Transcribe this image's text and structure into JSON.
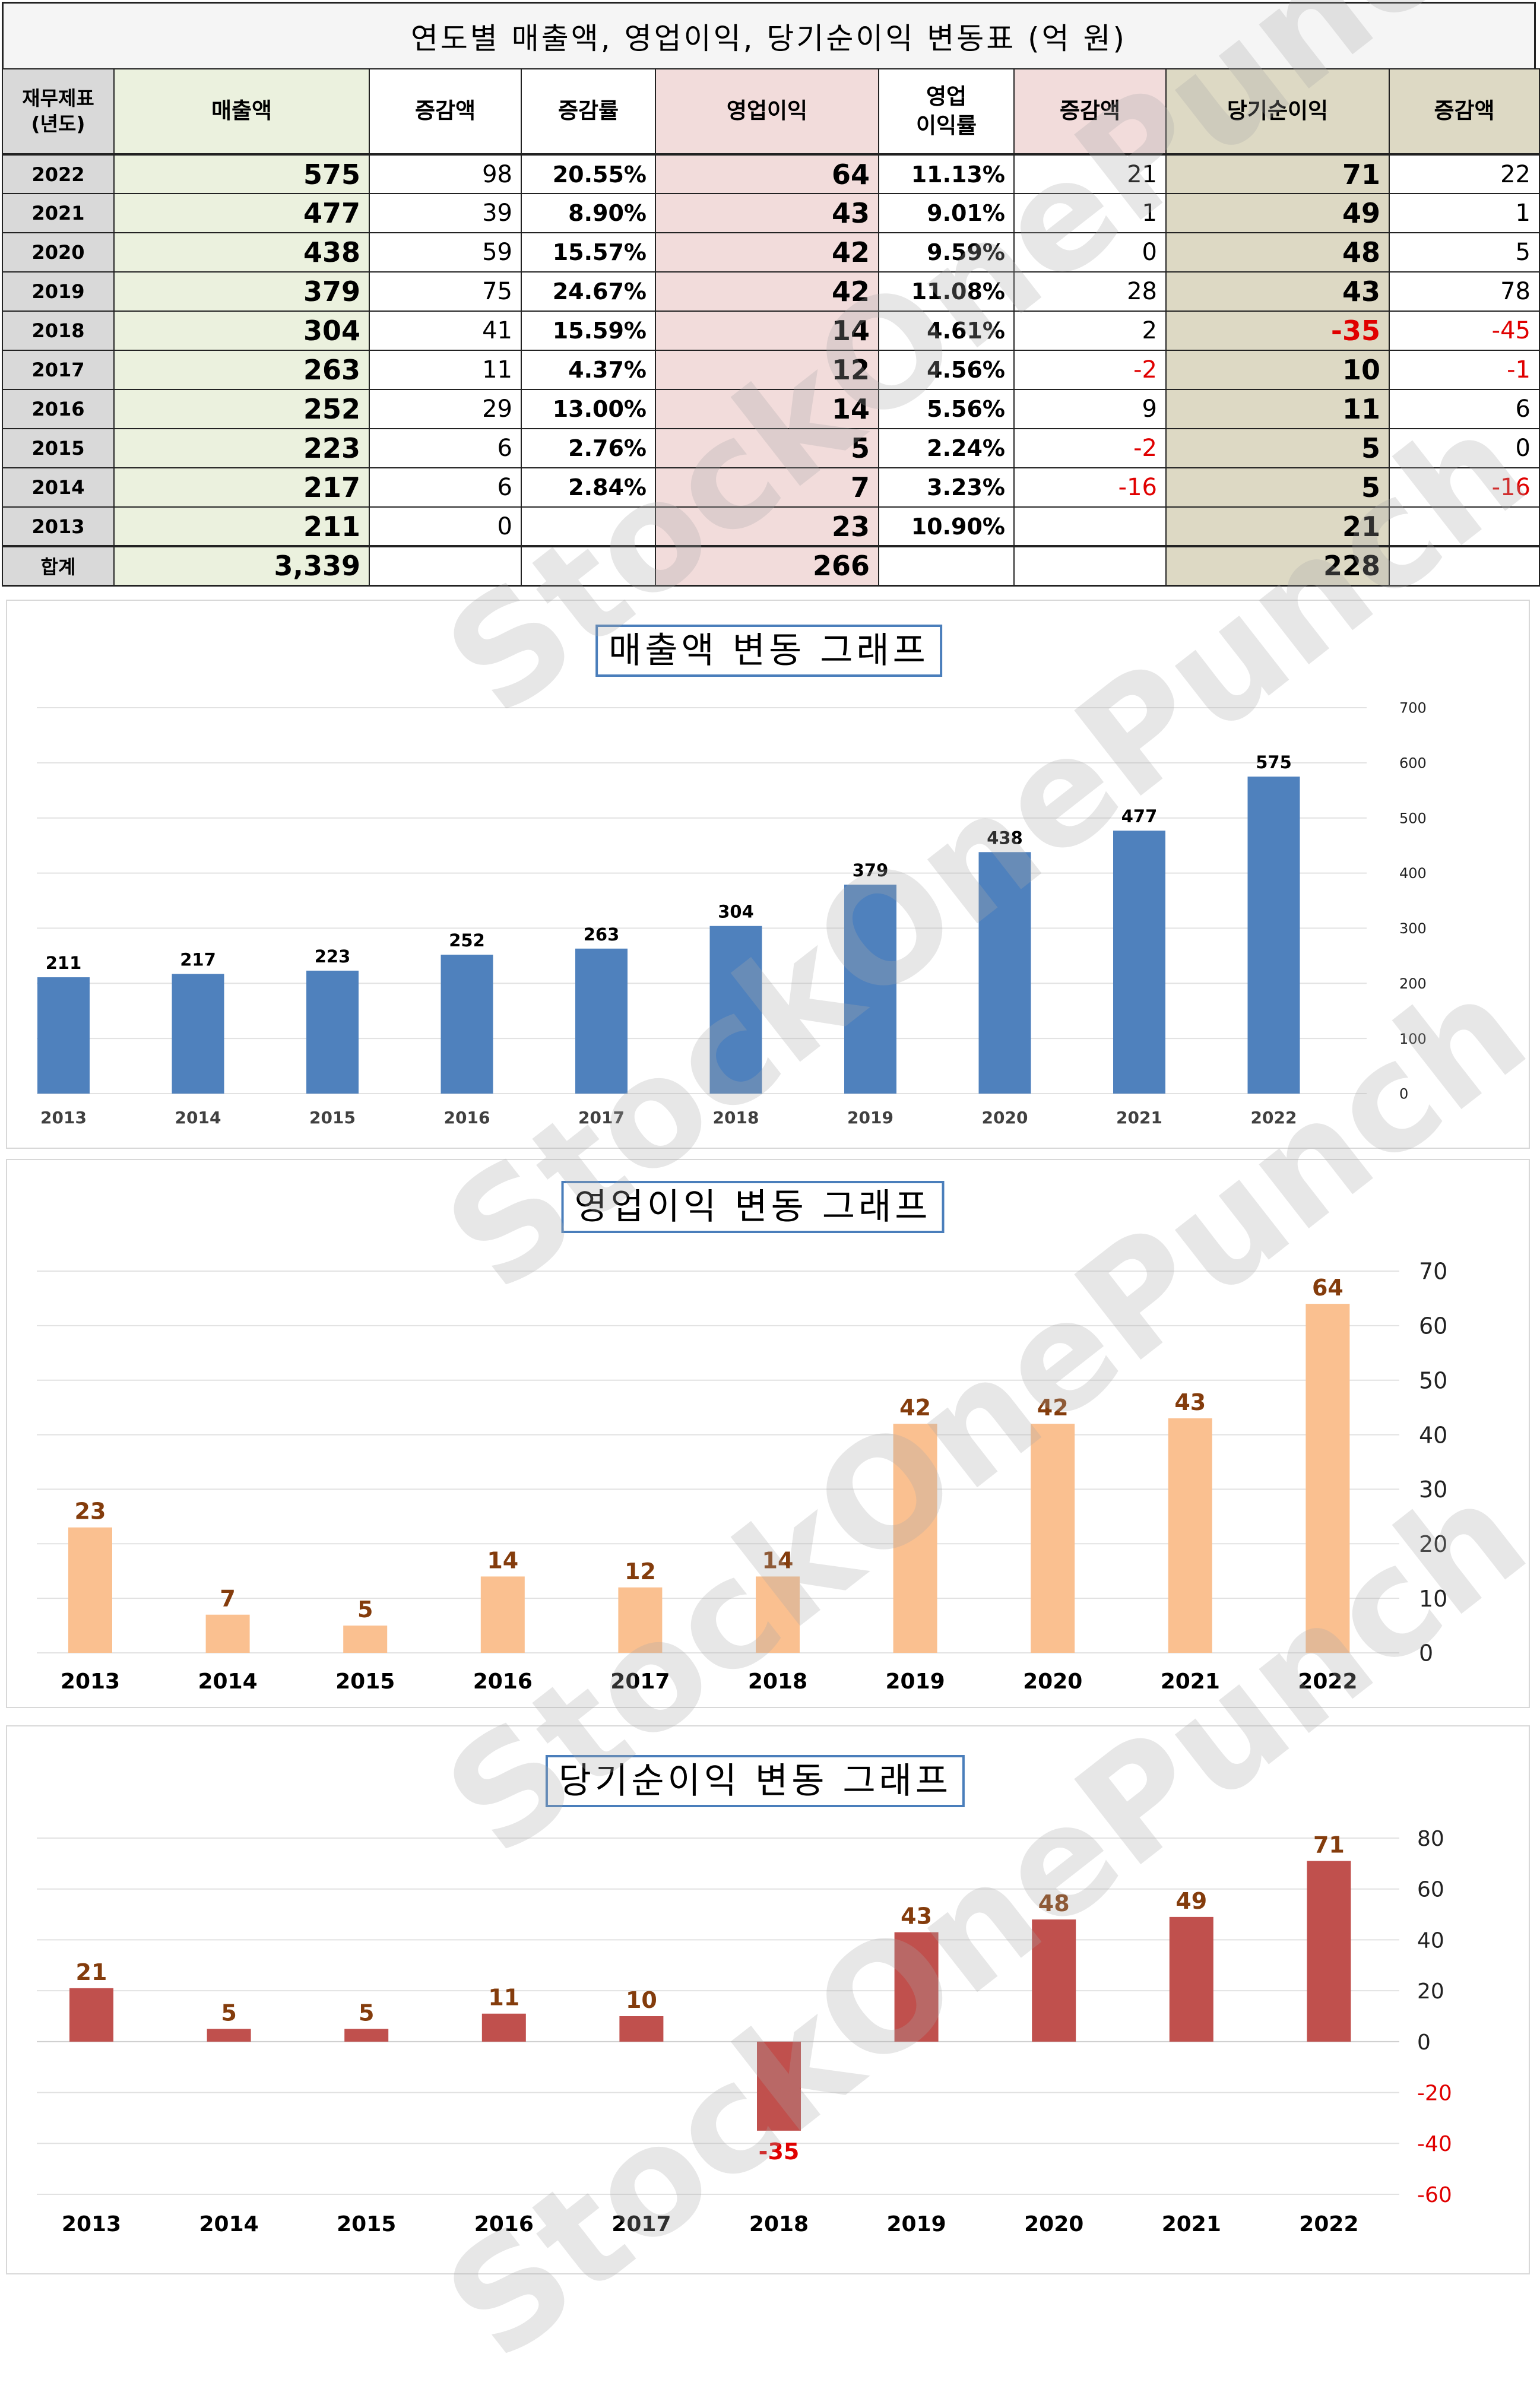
{
  "table": {
    "title": "연도별 매출액, 영업이익, 당기순이익 변동표   (억 원)",
    "headers": {
      "year": "재무제표\n(년도)",
      "revenue": "매출액",
      "rev_change": "증감액",
      "rev_rate": "증감률",
      "op_income": "영업이익",
      "op_margin": "영업\n이익률",
      "op_change": "증감액",
      "net_income": "당기순이익",
      "ni_change": "증감액"
    },
    "rows": [
      {
        "year": "2022",
        "revenue": "575",
        "rev_change": "98",
        "rev_rate": "20.55%",
        "op": "64",
        "op_margin": "11.13%",
        "op_change": "21",
        "ni": "71",
        "ni_change": "22"
      },
      {
        "year": "2021",
        "revenue": "477",
        "rev_change": "39",
        "rev_rate": "8.90%",
        "op": "43",
        "op_margin": "9.01%",
        "op_change": "1",
        "ni": "49",
        "ni_change": "1"
      },
      {
        "year": "2020",
        "revenue": "438",
        "rev_change": "59",
        "rev_rate": "15.57%",
        "op": "42",
        "op_margin": "9.59%",
        "op_change": "0",
        "ni": "48",
        "ni_change": "5"
      },
      {
        "year": "2019",
        "revenue": "379",
        "rev_change": "75",
        "rev_rate": "24.67%",
        "op": "42",
        "op_margin": "11.08%",
        "op_change": "28",
        "ni": "43",
        "ni_change": "78"
      },
      {
        "year": "2018",
        "revenue": "304",
        "rev_change": "41",
        "rev_rate": "15.59%",
        "op": "14",
        "op_margin": "4.61%",
        "op_change": "2",
        "ni": "-35",
        "ni_change": "-45"
      },
      {
        "year": "2017",
        "revenue": "263",
        "rev_change": "11",
        "rev_rate": "4.37%",
        "op": "12",
        "op_margin": "4.56%",
        "op_change": "-2",
        "ni": "10",
        "ni_change": "-1"
      },
      {
        "year": "2016",
        "revenue": "252",
        "rev_change": "29",
        "rev_rate": "13.00%",
        "op": "14",
        "op_margin": "5.56%",
        "op_change": "9",
        "ni": "11",
        "ni_change": "6"
      },
      {
        "year": "2015",
        "revenue": "223",
        "rev_change": "6",
        "rev_rate": "2.76%",
        "op": "5",
        "op_margin": "2.24%",
        "op_change": "-2",
        "ni": "5",
        "ni_change": "0"
      },
      {
        "year": "2014",
        "revenue": "217",
        "rev_change": "6",
        "rev_rate": "2.84%",
        "op": "7",
        "op_margin": "3.23%",
        "op_change": "-16",
        "ni": "5",
        "ni_change": "-16"
      },
      {
        "year": "2013",
        "revenue": "211",
        "rev_change": "0",
        "rev_rate": "",
        "op": "23",
        "op_margin": "10.90%",
        "op_change": "",
        "ni": "21",
        "ni_change": ""
      }
    ],
    "total": {
      "label": "합계",
      "revenue": "3,339",
      "op": "266",
      "ni": "228"
    }
  },
  "watermark": "StockOnePunch",
  "chart_data": [
    {
      "type": "bar",
      "title": "매출액 변동 그래프",
      "categories": [
        "2013",
        "2014",
        "2015",
        "2016",
        "2017",
        "2018",
        "2019",
        "2020",
        "2021",
        "2022"
      ],
      "values": [
        211,
        217,
        223,
        252,
        263,
        304,
        379,
        438,
        477,
        575
      ],
      "ylim": [
        0,
        700
      ],
      "yticks": [
        0,
        100,
        200,
        300,
        400,
        500,
        600,
        700
      ],
      "axis_side": "right",
      "grid": true,
      "color": "#4f81bd",
      "label_color": "#000000"
    },
    {
      "type": "bar",
      "title": "영업이익 변동 그래프",
      "categories": [
        "2013",
        "2014",
        "2015",
        "2016",
        "2017",
        "2018",
        "2019",
        "2020",
        "2021",
        "2022"
      ],
      "values": [
        23,
        7,
        5,
        14,
        12,
        14,
        42,
        42,
        43,
        64
      ],
      "ylim": [
        0,
        70
      ],
      "yticks": [
        0,
        10,
        20,
        30,
        40,
        50,
        60,
        70
      ],
      "axis_side": "right",
      "grid": true,
      "color": "#fac090",
      "label_color": "#843c0c"
    },
    {
      "type": "bar",
      "title": "당기순이익 변동 그래프",
      "categories": [
        "2013",
        "2014",
        "2015",
        "2016",
        "2017",
        "2018",
        "2019",
        "2020",
        "2021",
        "2022"
      ],
      "values": [
        21,
        5,
        5,
        11,
        10,
        -35,
        43,
        48,
        49,
        71
      ],
      "ylim": [
        -60,
        80
      ],
      "yticks": [
        -60,
        -40,
        -20,
        0,
        20,
        40,
        60,
        80
      ],
      "axis_side": "right",
      "grid": true,
      "color": "#c0504d",
      "label_color": "#843c0c",
      "negative_label_color": "#e00000"
    }
  ]
}
